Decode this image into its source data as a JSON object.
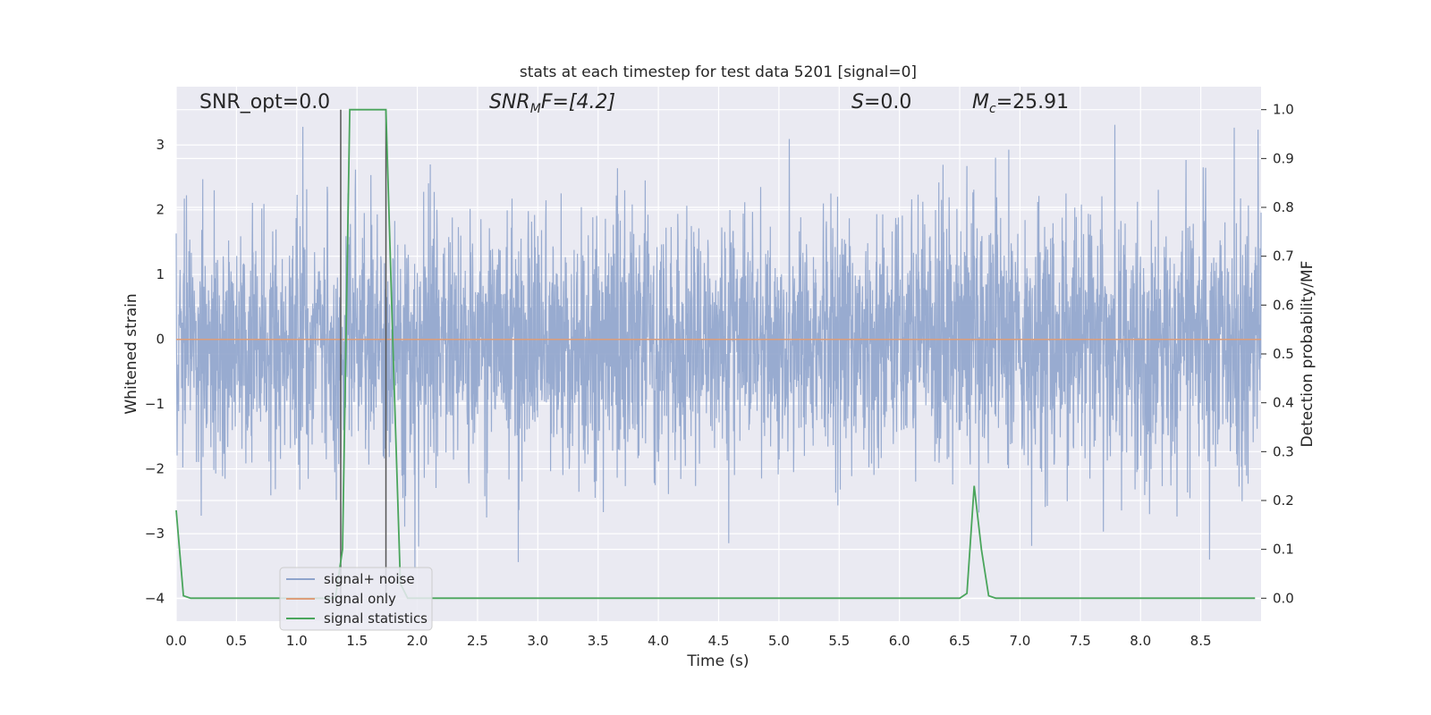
{
  "chart_data": {
    "type": "line",
    "title": "stats at each timestep for test data 5201 [signal=0]",
    "xlabel": "Time (s)",
    "ylabel": "Whitened strain",
    "y2label": "Detection probability/MF",
    "xlim": [
      0,
      9.0
    ],
    "ylim": [
      -4.35,
      3.9
    ],
    "y2lim": [
      -0.047,
      1.047
    ],
    "xticks": [
      "0.0",
      "0.5",
      "1.0",
      "1.5",
      "2.0",
      "2.5",
      "3.0",
      "3.5",
      "4.0",
      "4.5",
      "5.0",
      "5.5",
      "6.0",
      "6.5",
      "7.0",
      "7.5",
      "8.0",
      "8.5"
    ],
    "yticks": [
      "3",
      "2",
      "1",
      "0",
      "−1",
      "−2",
      "−3",
      "−4"
    ],
    "y2ticks": [
      "1.0",
      "0.9",
      "0.8",
      "0.7",
      "0.6",
      "0.5",
      "0.4",
      "0.3",
      "0.2",
      "0.1",
      "0.0"
    ],
    "grid": true,
    "legend_position": "lower-left",
    "annotations": {
      "snr_opt": "SNR_opt=0.0",
      "snr_mf_base": "SNR",
      "snr_mf_sub": "M",
      "snr_mf_rest": "F=[4.2]",
      "s_label": "S",
      "s_value": "=0.0",
      "mc_base": "M",
      "mc_sub": "c",
      "mc_value": "=25.91"
    },
    "series": [
      {
        "name": "signal+ noise",
        "color": "#8fa4cc",
        "description_range": [
          -4.0,
          3.45
        ],
        "noise_sigma": 1.0
      },
      {
        "name": "signal only",
        "color": "#dd9e7a",
        "x": [
          0,
          9.0
        ],
        "y": [
          0,
          0
        ]
      },
      {
        "name": "signal statistics",
        "color": "#4aa55c",
        "axis": "right",
        "x": [
          0.0,
          0.06,
          0.12,
          1.2,
          1.32,
          1.38,
          1.44,
          1.5,
          1.62,
          1.74,
          1.8,
          1.86,
          1.92,
          6.5,
          6.56,
          6.62,
          6.68,
          6.74,
          6.8,
          7.0,
          8.95
        ],
        "y": [
          0.18,
          0.005,
          0.0,
          0.0,
          0.0,
          0.1,
          1.0,
          1.0,
          1.0,
          1.0,
          0.5,
          0.03,
          0.0,
          0.0,
          0.01,
          0.23,
          0.1,
          0.005,
          0.0,
          0.0,
          0.0
        ]
      }
    ],
    "event_markers": {
      "color": "#555555",
      "x": [
        1.365,
        1.74
      ]
    }
  }
}
